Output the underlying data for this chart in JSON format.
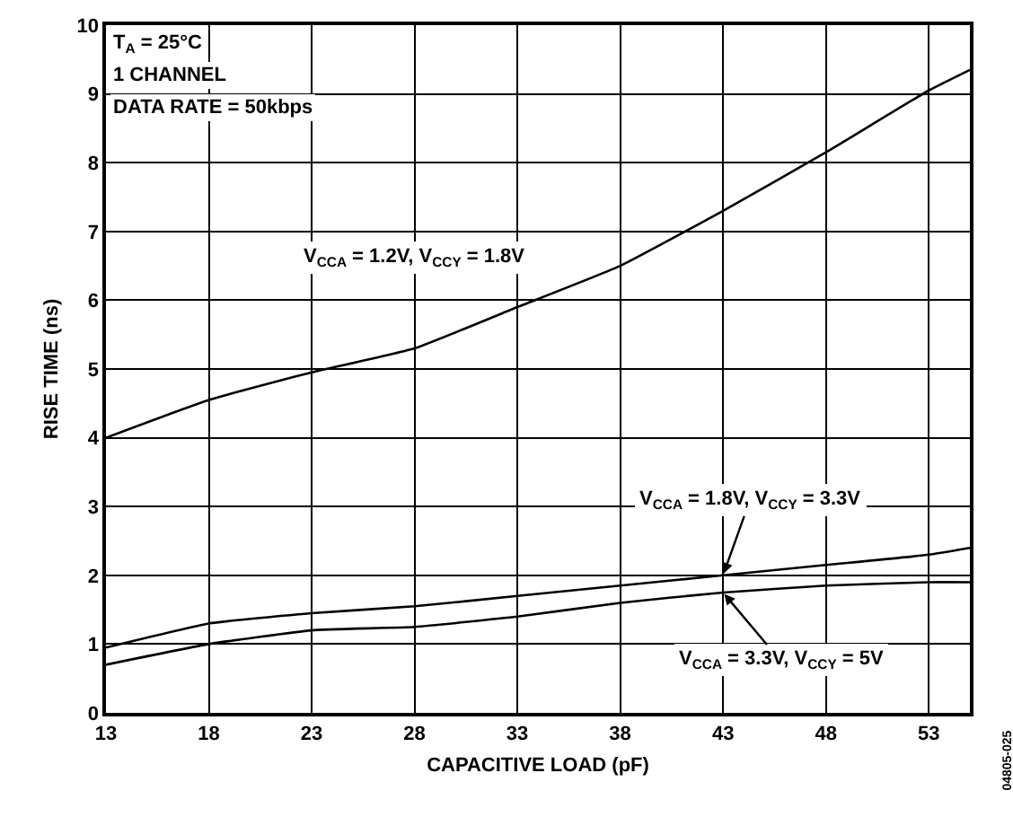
{
  "chart_data": {
    "type": "line",
    "xlabel": "CAPACITIVE LOAD (pF)",
    "ylabel": "RISE TIME (ns)",
    "x": [
      13,
      18,
      23,
      28,
      33,
      38,
      43,
      48,
      53,
      55
    ],
    "series": [
      {
        "name": "V$_{CCA}$ = 1.2V, V$_{CCY}$ = 1.8V",
        "color": "#000000",
        "values": [
          4.0,
          4.55,
          4.95,
          5.3,
          5.9,
          6.5,
          7.3,
          8.15,
          9.05,
          9.35
        ]
      },
      {
        "name": "V$_{CCA}$ = 1.8V, V$_{CCY}$ = 3.3V",
        "color": "#000000",
        "values": [
          0.95,
          1.3,
          1.45,
          1.55,
          1.7,
          1.85,
          2.0,
          2.15,
          2.3,
          2.4
        ]
      },
      {
        "name": "V$_{CCA}$ = 3.3V, V$_{CCY}$ = 5V",
        "color": "#000000",
        "values": [
          0.7,
          1.0,
          1.2,
          1.25,
          1.4,
          1.6,
          1.75,
          1.85,
          1.9,
          1.9
        ]
      }
    ],
    "xlim": [
      13,
      55
    ],
    "xticks": [
      13,
      18,
      23,
      28,
      33,
      38,
      43,
      48,
      53
    ],
    "ylim": [
      0,
      10
    ],
    "yticks": [
      0,
      1,
      2,
      3,
      4,
      5,
      6,
      7,
      8,
      9,
      10
    ],
    "grid": true,
    "legend": false,
    "marker": "none",
    "line_style": "solid",
    "annotations": [
      "T$_{A}$ = 25°C",
      "1 CHANNEL",
      "DATA RATE = 50kbps",
      "04805-025"
    ]
  }
}
